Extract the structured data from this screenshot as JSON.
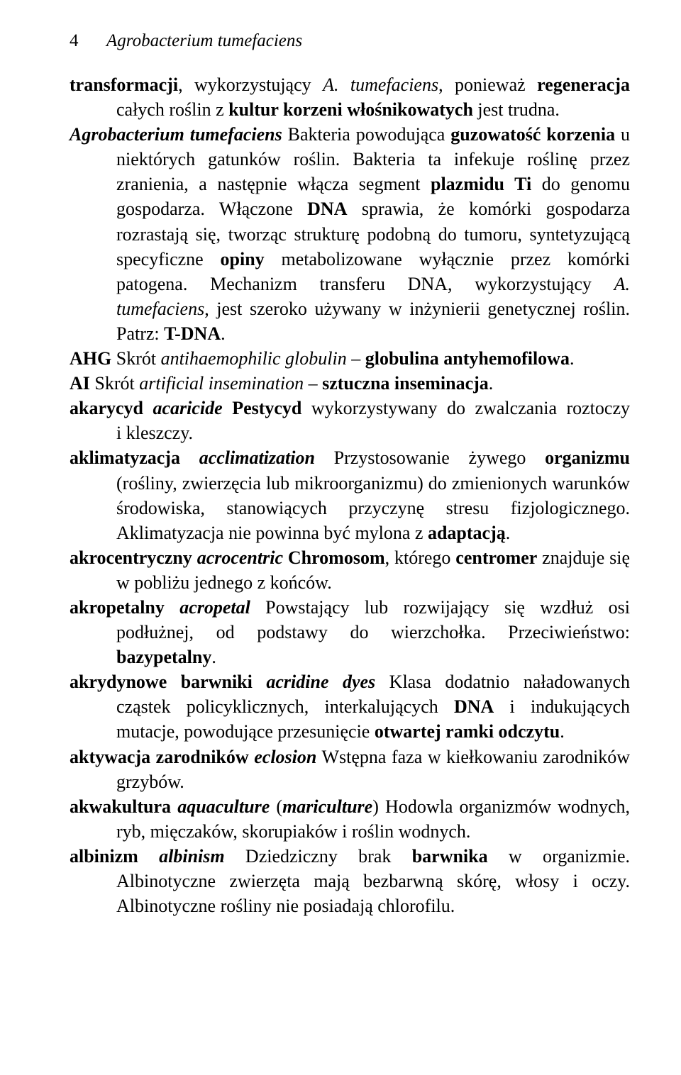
{
  "page_number": "4",
  "header_term": "Agrobacterium tumefaciens"
}
